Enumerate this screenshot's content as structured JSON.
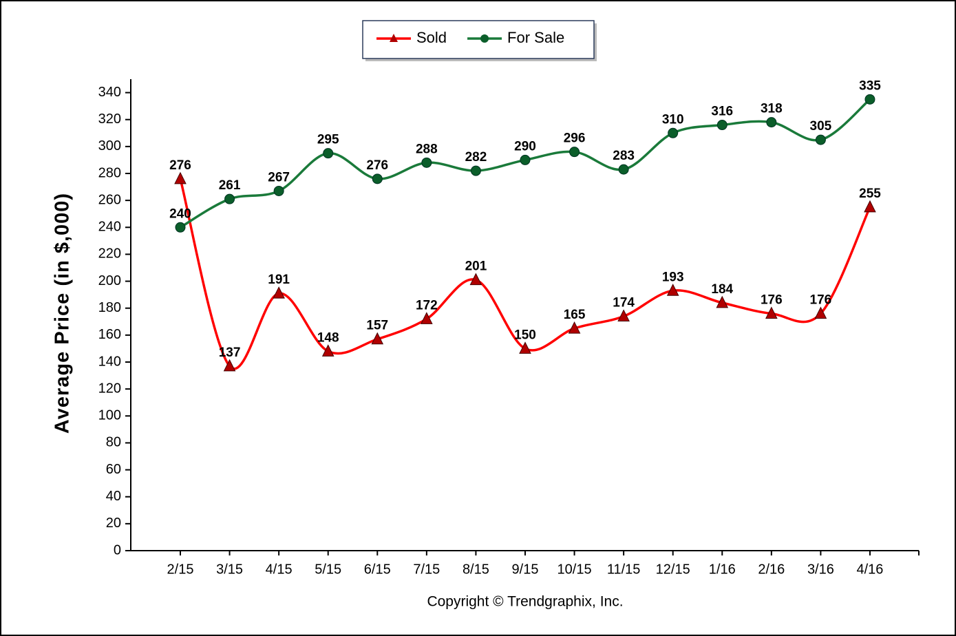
{
  "chart_data": {
    "type": "line",
    "y_label": "Average Price (in $,000)",
    "footer": "Copyright © Trendgraphix, Inc.",
    "categories": [
      "2/15",
      "3/15",
      "4/15",
      "5/15",
      "6/15",
      "7/15",
      "8/15",
      "9/15",
      "10/15",
      "11/15",
      "12/15",
      "1/16",
      "2/16",
      "3/16",
      "4/16"
    ],
    "series": [
      {
        "name": "Sold",
        "color": "#ff0000",
        "marker_color": "#b00000",
        "marker": "triangle",
        "values": [
          276,
          137,
          191,
          148,
          157,
          172,
          201,
          150,
          165,
          174,
          193,
          184,
          176,
          176,
          255
        ]
      },
      {
        "name": "For Sale",
        "color": "#1a7a3a",
        "marker_color": "#0b5e2a",
        "marker": "circle",
        "values": [
          240,
          261,
          267,
          295,
          276,
          288,
          282,
          290,
          296,
          283,
          310,
          316,
          318,
          305,
          335
        ]
      }
    ],
    "ylim": [
      0,
      350
    ],
    "yticks": [
      0,
      20,
      40,
      60,
      80,
      100,
      120,
      140,
      160,
      180,
      200,
      220,
      240,
      260,
      280,
      300,
      320,
      340
    ],
    "legend": "top"
  }
}
